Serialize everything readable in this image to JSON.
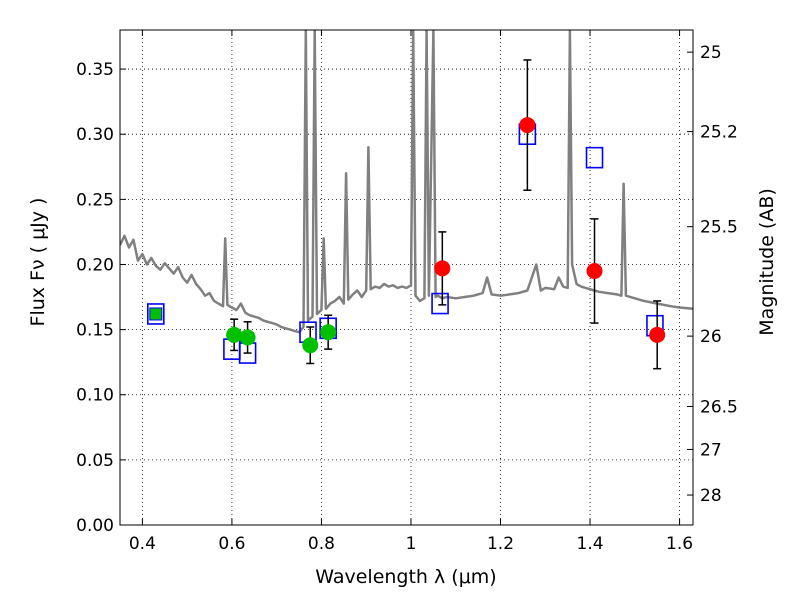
{
  "chart_data": {
    "type": "scatter",
    "xlabel": "Wavelength  λ (μm)",
    "ylabel": "Flux  Fν  ( μJy )",
    "ylabel_right": "Magnitude (AB)",
    "xlim": [
      0.35,
      1.63
    ],
    "ylim": [
      0.0,
      0.38
    ],
    "x_ticks": [
      0.4,
      0.6,
      0.8,
      1.0,
      1.2,
      1.4,
      1.6
    ],
    "x_tick_labels": [
      "0.4",
      "0.6",
      "0.8",
      "1",
      "1.2",
      "1.4",
      "1.6"
    ],
    "y_ticks": [
      0.0,
      0.05,
      0.1,
      0.15,
      0.2,
      0.25,
      0.3,
      0.35
    ],
    "y_tick_labels": [
      "0.00",
      "0.05",
      "0.10",
      "0.15",
      "0.20",
      "0.25",
      "0.30",
      "0.35"
    ],
    "right_ticks": [
      {
        "label": "25",
        "flux": 0.363
      },
      {
        "label": "25.2",
        "flux": 0.302
      },
      {
        "label": "25.5",
        "flux": 0.229
      },
      {
        "label": "26",
        "flux": 0.145
      },
      {
        "label": "26.5",
        "flux": 0.091
      },
      {
        "label": "27",
        "flux": 0.058
      },
      {
        "label": "28",
        "flux": 0.023
      }
    ],
    "grid": true,
    "grid_style": "dotted",
    "colors": {
      "model": "#808080",
      "green": "#00c000",
      "red": "#ff0000",
      "boxes": "#0000ff",
      "errorbar": "#000000"
    },
    "series": [
      {
        "kind": "line",
        "points": [
          [
            0.35,
            0.215
          ],
          [
            0.36,
            0.222
          ],
          [
            0.37,
            0.213
          ],
          [
            0.38,
            0.219
          ],
          [
            0.39,
            0.203
          ],
          [
            0.4,
            0.208
          ],
          [
            0.41,
            0.2
          ],
          [
            0.42,
            0.205
          ],
          [
            0.43,
            0.199
          ],
          [
            0.44,
            0.196
          ],
          [
            0.45,
            0.201
          ],
          [
            0.46,
            0.197
          ],
          [
            0.47,
            0.193
          ],
          [
            0.48,
            0.198
          ],
          [
            0.49,
            0.19
          ],
          [
            0.5,
            0.186
          ],
          [
            0.51,
            0.192
          ],
          [
            0.52,
            0.185
          ],
          [
            0.53,
            0.181
          ],
          [
            0.54,
            0.176
          ],
          [
            0.55,
            0.178
          ],
          [
            0.56,
            0.172
          ],
          [
            0.57,
            0.17
          ],
          [
            0.58,
            0.168
          ],
          [
            0.585,
            0.22
          ],
          [
            0.59,
            0.169
          ],
          [
            0.6,
            0.167
          ],
          [
            0.61,
            0.165
          ],
          [
            0.62,
            0.17
          ],
          [
            0.63,
            0.163
          ],
          [
            0.64,
            0.161
          ],
          [
            0.65,
            0.16
          ],
          [
            0.66,
            0.159
          ],
          [
            0.67,
            0.157
          ],
          [
            0.68,
            0.156
          ],
          [
            0.69,
            0.155
          ],
          [
            0.7,
            0.154
          ],
          [
            0.71,
            0.152
          ],
          [
            0.72,
            0.151
          ],
          [
            0.73,
            0.15
          ],
          [
            0.74,
            0.149
          ],
          [
            0.75,
            0.148
          ],
          [
            0.76,
            0.152
          ],
          [
            0.765,
            0.38
          ],
          [
            0.77,
            0.157
          ],
          [
            0.78,
            0.16
          ],
          [
            0.785,
            0.38
          ],
          [
            0.79,
            0.162
          ],
          [
            0.8,
            0.165
          ],
          [
            0.805,
            0.22
          ],
          [
            0.81,
            0.166
          ],
          [
            0.82,
            0.17
          ],
          [
            0.83,
            0.172
          ],
          [
            0.84,
            0.175
          ],
          [
            0.85,
            0.17
          ],
          [
            0.855,
            0.27
          ],
          [
            0.86,
            0.173
          ],
          [
            0.87,
            0.177
          ],
          [
            0.88,
            0.18
          ],
          [
            0.89,
            0.175
          ],
          [
            0.9,
            0.18
          ],
          [
            0.905,
            0.29
          ],
          [
            0.91,
            0.181
          ],
          [
            0.92,
            0.183
          ],
          [
            0.93,
            0.182
          ],
          [
            0.94,
            0.185
          ],
          [
            0.95,
            0.183
          ],
          [
            0.96,
            0.184
          ],
          [
            0.97,
            0.182
          ],
          [
            0.98,
            0.183
          ],
          [
            0.99,
            0.182
          ],
          [
            1.0,
            0.184
          ],
          [
            1.005,
            0.38
          ],
          [
            1.01,
            0.176
          ],
          [
            1.02,
            0.172
          ],
          [
            1.03,
            0.174
          ],
          [
            1.035,
            0.38
          ],
          [
            1.04,
            0.176
          ],
          [
            1.05,
            0.38
          ],
          [
            1.055,
            0.175
          ],
          [
            1.06,
            0.176
          ],
          [
            1.07,
            0.174
          ],
          [
            1.08,
            0.175
          ],
          [
            1.1,
            0.174
          ],
          [
            1.12,
            0.175
          ],
          [
            1.14,
            0.176
          ],
          [
            1.16,
            0.178
          ],
          [
            1.17,
            0.19
          ],
          [
            1.18,
            0.177
          ],
          [
            1.2,
            0.176
          ],
          [
            1.22,
            0.177
          ],
          [
            1.24,
            0.178
          ],
          [
            1.26,
            0.18
          ],
          [
            1.28,
            0.2
          ],
          [
            1.29,
            0.18
          ],
          [
            1.3,
            0.182
          ],
          [
            1.32,
            0.181
          ],
          [
            1.33,
            0.19
          ],
          [
            1.34,
            0.183
          ],
          [
            1.35,
            0.182
          ],
          [
            1.355,
            0.38
          ],
          [
            1.36,
            0.2
          ],
          [
            1.37,
            0.185
          ],
          [
            1.38,
            0.183
          ],
          [
            1.39,
            0.182
          ],
          [
            1.4,
            0.181
          ],
          [
            1.41,
            0.18
          ],
          [
            1.42,
            0.179
          ],
          [
            1.44,
            0.178
          ],
          [
            1.46,
            0.177
          ],
          [
            1.47,
            0.176
          ],
          [
            1.475,
            0.262
          ],
          [
            1.48,
            0.176
          ],
          [
            1.5,
            0.174
          ],
          [
            1.52,
            0.172
          ],
          [
            1.55,
            0.17
          ],
          [
            1.58,
            0.168
          ],
          [
            1.6,
            0.167
          ],
          [
            1.63,
            0.166
          ]
        ]
      },
      {
        "kind": "points",
        "marker": "square",
        "points": [
          [
            0.43,
            0.162
          ],
          [
            0.6,
            0.135
          ],
          [
            0.635,
            0.132
          ],
          [
            0.77,
            0.148
          ],
          [
            0.815,
            0.151
          ],
          [
            1.065,
            0.17
          ],
          [
            1.26,
            0.3
          ],
          [
            1.41,
            0.282
          ],
          [
            1.545,
            0.153
          ]
        ]
      },
      {
        "kind": "points",
        "marker": "circle",
        "points": [
          {
            "x": 0.605,
            "y": 0.146,
            "err": 0.012
          },
          {
            "x": 0.635,
            "y": 0.144,
            "err": 0.012
          },
          {
            "x": 0.775,
            "y": 0.138,
            "err": 0.014
          },
          {
            "x": 0.815,
            "y": 0.148,
            "err": 0.013
          }
        ]
      },
      {
        "kind": "points",
        "marker": "circle",
        "points": [
          {
            "x": 1.07,
            "y": 0.197,
            "err": 0.028
          },
          {
            "x": 1.26,
            "y": 0.307,
            "err": 0.05
          },
          {
            "x": 1.41,
            "y": 0.195,
            "err": 0.04
          },
          {
            "x": 1.55,
            "y": 0.146,
            "err": 0.026
          }
        ]
      },
      {
        "kind": "points",
        "marker": "circle-small",
        "points": [
          [
            0.43,
            0.162
          ]
        ]
      }
    ]
  }
}
